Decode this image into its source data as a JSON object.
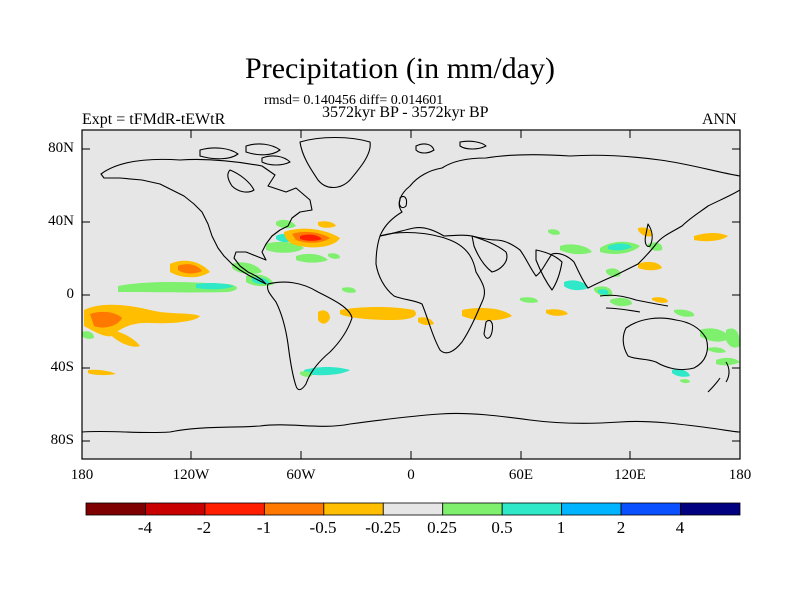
{
  "title": "Precipitation (in mm/day)",
  "stats_line": "rmsd= 0.140456 diff= 0.014601",
  "period_line": "3572kyr BP - 3572kyr BP",
  "experiment_label": "Expt = tFMdR-tEWtR",
  "season_label": "ANN",
  "map_background": "#e6e6e6",
  "lat_ticks": [
    "80N",
    "40N",
    "0",
    "40S",
    "80S"
  ],
  "lon_ticks": [
    "180",
    "120W",
    "60W",
    "0",
    "60E",
    "120E",
    "180"
  ],
  "colorbar": {
    "colors": [
      "#7f0000",
      "#c80000",
      "#ff1e00",
      "#ff7800",
      "#ffbe00",
      "#e6e6e6",
      "#7ef06e",
      "#2ee8c8",
      "#00b4ff",
      "#0a50ff",
      "#000080"
    ],
    "labels": [
      "-4",
      "-2",
      "-1",
      "-0.5",
      "-0.25",
      "0.25",
      "0.5",
      "1",
      "2",
      "4"
    ]
  }
}
